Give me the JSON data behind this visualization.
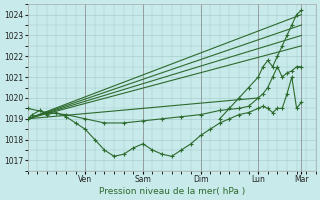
{
  "xlabel": "Pression niveau de la mer( hPa )",
  "bg_color": "#c8eaea",
  "grid_color": "#a0c8c8",
  "line_color": "#2d6a2d",
  "ylim": [
    1016.5,
    1024.5
  ],
  "xlim": [
    0,
    120
  ],
  "day_labels": [
    "Ven",
    "Sam",
    "Dim",
    "Lun",
    "Mar"
  ],
  "day_positions": [
    24,
    48,
    72,
    96,
    114
  ],
  "yticks": [
    1017,
    1018,
    1019,
    1020,
    1021,
    1022,
    1023,
    1024
  ],
  "lines": [
    {
      "x": [
        0,
        114
      ],
      "y": [
        1019.0,
        1024.0
      ],
      "marker": false
    },
    {
      "x": [
        0,
        114
      ],
      "y": [
        1019.0,
        1023.5
      ],
      "marker": false
    },
    {
      "x": [
        0,
        114
      ],
      "y": [
        1019.0,
        1023.0
      ],
      "marker": false
    },
    {
      "x": [
        0,
        114
      ],
      "y": [
        1019.0,
        1022.5
      ],
      "marker": false
    },
    {
      "x": [
        0,
        96
      ],
      "y": [
        1019.0,
        1020.0
      ],
      "marker": false
    },
    {
      "x": [
        0,
        2,
        5,
        8,
        12,
        16,
        20,
        24,
        28,
        32,
        36,
        40,
        44,
        48,
        52,
        56,
        60,
        64,
        68,
        72,
        76,
        80,
        84,
        88,
        92,
        96,
        98,
        100,
        102,
        104,
        106,
        108,
        110,
        112,
        114
      ],
      "y": [
        1019.0,
        1019.2,
        1019.4,
        1019.2,
        1019.3,
        1019.1,
        1018.8,
        1018.5,
        1018.0,
        1017.5,
        1017.2,
        1017.3,
        1017.6,
        1017.8,
        1017.5,
        1017.3,
        1017.2,
        1017.5,
        1017.8,
        1018.2,
        1018.5,
        1018.8,
        1019.0,
        1019.2,
        1019.3,
        1019.5,
        1019.6,
        1019.5,
        1019.3,
        1019.5,
        1019.5,
        1020.2,
        1021.0,
        1019.5,
        1019.8
      ],
      "marker": true
    },
    {
      "x": [
        0,
        8,
        16,
        24,
        32,
        40,
        48,
        56,
        64,
        72,
        80,
        88,
        92,
        96,
        98,
        100,
        102,
        104,
        106,
        108,
        110,
        112,
        114
      ],
      "y": [
        1019.5,
        1019.3,
        1019.2,
        1019.0,
        1018.8,
        1018.8,
        1018.9,
        1019.0,
        1019.1,
        1019.2,
        1019.4,
        1019.5,
        1019.6,
        1020.0,
        1020.2,
        1020.5,
        1021.0,
        1021.5,
        1021.0,
        1021.2,
        1021.3,
        1021.5,
        1021.5
      ],
      "marker": true
    },
    {
      "x": [
        80,
        84,
        88,
        92,
        96,
        98,
        100,
        102,
        104,
        106,
        108,
        110,
        112,
        114
      ],
      "y": [
        1019.0,
        1019.5,
        1020.0,
        1020.5,
        1021.0,
        1021.5,
        1021.8,
        1021.5,
        1022.0,
        1022.5,
        1023.0,
        1023.5,
        1024.0,
        1024.2
      ],
      "marker": true
    }
  ]
}
